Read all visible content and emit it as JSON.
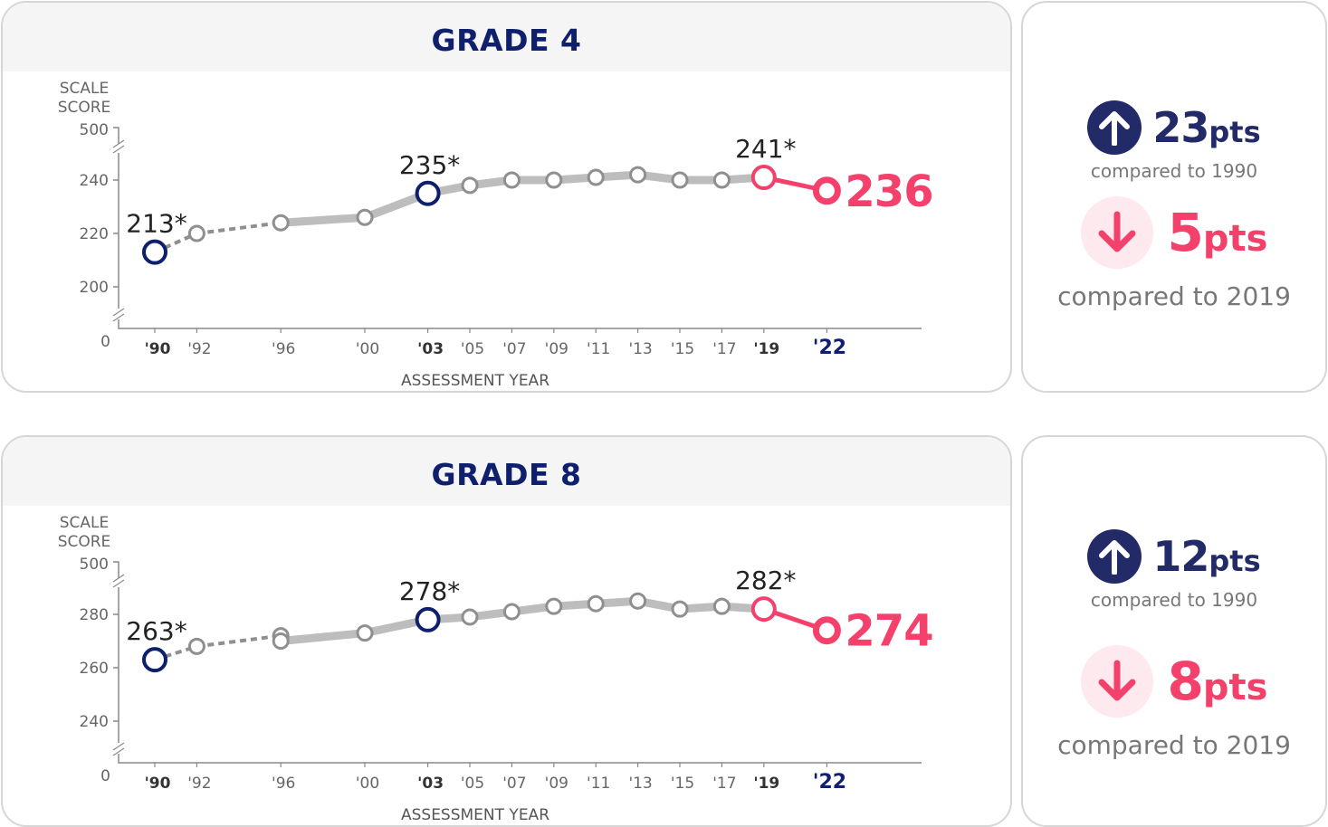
{
  "colors": {
    "navy": "#0e1f6e",
    "pink": "#f4416c",
    "grey_line": "#bdbdbd",
    "grey_dark": "#8f8f8f"
  },
  "icons": {
    "up": "arrow-up-icon",
    "down": "arrow-down-icon"
  },
  "axis": {
    "y_title_line1": "SCALE",
    "y_title_line2": "SCORE",
    "y_top": "500",
    "y_zero": "0",
    "x_title": "ASSESSMENT YEAR"
  },
  "x_ticks": [
    "'90",
    "'92",
    "'96",
    "'00",
    "'03",
    "'05",
    "'07",
    "'09",
    "'11",
    "'13",
    "'15",
    "'17",
    "'19",
    "'22"
  ],
  "x_ticks_bold": [
    "'90",
    "'03",
    "'19",
    "'22"
  ],
  "chart_data": [
    {
      "type": "line",
      "title": "GRADE 4",
      "xlabel": "ASSESSMENT YEAR",
      "ylabel": "SCALE SCORE",
      "ylim": [
        190,
        250
      ],
      "yticks": [
        200,
        220,
        240
      ],
      "x": [
        1990,
        1992,
        1996,
        2000,
        2003,
        2005,
        2007,
        2009,
        2011,
        2013,
        2015,
        2017,
        2019,
        2022
      ],
      "values": [
        213,
        220,
        224,
        226,
        235,
        238,
        240,
        240,
        241,
        242,
        240,
        240,
        241,
        236
      ],
      "labels": {
        "1990": "213*",
        "2003": "235*",
        "2019": "241*",
        "2022": "236"
      }
    },
    {
      "type": "line",
      "title": "GRADE 8",
      "xlabel": "ASSESSMENT YEAR",
      "ylabel": "SCALE SCORE",
      "ylim": [
        230,
        290
      ],
      "yticks": [
        240,
        260,
        280
      ],
      "x": [
        1990,
        1992,
        1996,
        2000,
        2003,
        2005,
        2007,
        2009,
        2011,
        2013,
        2015,
        2017,
        2019,
        2022
      ],
      "values": [
        263,
        268,
        270,
        273,
        278,
        279,
        281,
        283,
        284,
        285,
        282,
        283,
        282,
        274
      ],
      "extra_point": {
        "x": 1996,
        "value": 272
      },
      "labels": {
        "1990": "263*",
        "2003": "278*",
        "2019": "282*",
        "2022": "274"
      }
    }
  ],
  "summary": [
    {
      "up_value": "23",
      "up_unit": "pts",
      "up_compare": "compared to 1990",
      "down_value": "5",
      "down_unit": "pts",
      "down_compare": "compared to 2019"
    },
    {
      "up_value": "12",
      "up_unit": "pts",
      "up_compare": "compared to 1990",
      "down_value": "8",
      "down_unit": "pts",
      "down_compare": "compared to 2019"
    }
  ]
}
